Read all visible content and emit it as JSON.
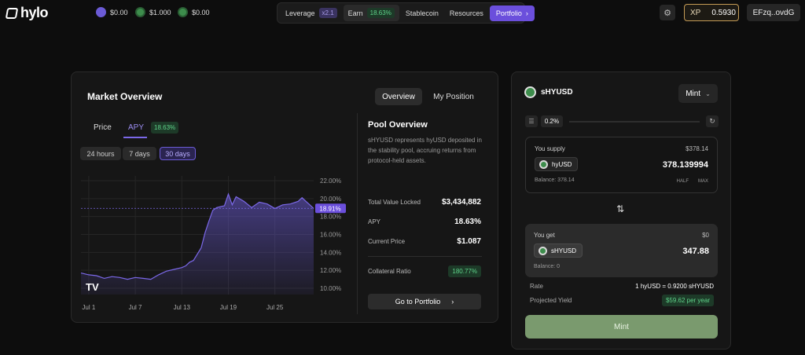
{
  "brand": {
    "logo": "hylo"
  },
  "balances": [
    {
      "icon": "hyusd-coin-icon",
      "value": "$0.00"
    },
    {
      "icon": "sol-coin-icon",
      "value": "$1.000"
    },
    {
      "icon": "shyusd-coin-icon",
      "value": "$0.00"
    }
  ],
  "nav": {
    "leverage": "Leverage",
    "leverage_badge": "x2.1",
    "earn": "Earn",
    "earn_badge": "18.63%",
    "stablecoin": "Stablecoin",
    "resources": "Resources",
    "portfolio": "Portfolio"
  },
  "header_right": {
    "xp_label": "XP",
    "xp_value": "0.5930",
    "wallet": "EFzq..ovdG"
  },
  "market": {
    "title": "Market Overview",
    "tabs": [
      "Overview",
      "My Position"
    ],
    "subtabs": {
      "price": "Price",
      "apy": "APY",
      "apy_badge": "18.63%"
    },
    "ranges": [
      "24 hours",
      "7 days",
      "30 days"
    ],
    "current_label": "18.91%"
  },
  "chart_data": {
    "type": "area",
    "y_ticks": [
      "22.00%",
      "20.00%",
      "18.00%",
      "16.00%",
      "14.00%",
      "12.00%",
      "10.00%"
    ],
    "x_ticks": [
      "Jul 1",
      "Jul 7",
      "Jul 13",
      "Jul 19",
      "Jul 25"
    ],
    "ylim": [
      10,
      22
    ],
    "xlim": [
      0,
      30
    ],
    "current": 18.91,
    "x": [
      0,
      1,
      2,
      3,
      4,
      5,
      6,
      7,
      8,
      9,
      10,
      11,
      12,
      13,
      13.5,
      14,
      14.5,
      15,
      15.5,
      16,
      16.5,
      17,
      17.5,
      18,
      18.5,
      19,
      19.5,
      20,
      21,
      22,
      23,
      24,
      25,
      26,
      27,
      28,
      28.5,
      29,
      29.5,
      30
    ],
    "values": [
      11.7,
      11.5,
      11.4,
      11.1,
      11.3,
      11.2,
      11.0,
      11.2,
      11.1,
      11.0,
      11.5,
      11.9,
      12.1,
      12.3,
      12.5,
      12.9,
      13.1,
      13.8,
      14.5,
      16.2,
      17.5,
      18.7,
      19.0,
      19.1,
      19.2,
      20.5,
      19.3,
      20.2,
      19.7,
      19.0,
      19.6,
      19.4,
      18.9,
      19.3,
      19.4,
      19.7,
      20.1,
      19.7,
      19.3,
      18.9
    ]
  },
  "pool": {
    "title": "Pool Overview",
    "description": "sHYUSD represents hyUSD deposited in the stability pool, accruing returns from protocol-held assets.",
    "stats": [
      {
        "label": "Total Value Locked",
        "value": "$3,434,882"
      },
      {
        "label": "APY",
        "value": "18.63%"
      },
      {
        "label": "Current Price",
        "value": "$1.087"
      }
    ],
    "collateral_label": "Collateral Ratio",
    "collateral_value": "180.77%",
    "cta": "Go to Portfolio"
  },
  "swap": {
    "token": "sHYUSD",
    "mode": "Mint",
    "slippage": "0.2%",
    "supply": {
      "label": "You supply",
      "usd": "$378.14",
      "token": "hyUSD",
      "amount": "378.139994",
      "balance": "Balance: 378.14",
      "half": "HALF",
      "max": "MAX"
    },
    "get": {
      "label": "You get",
      "usd": "$0",
      "token": "sHYUSD",
      "amount": "347.88",
      "balance": "Balance: 0"
    },
    "rate_label": "Rate",
    "rate_value": "1 hyUSD = 0.9200 sHYUSD",
    "yield_label": "Projected Yield",
    "yield_value": "$59.62 per year",
    "button": "Mint"
  },
  "colors": {
    "accent": "#6b4fdc",
    "green": "#5fd38a",
    "mint_button": "#7a9a6e",
    "xp_border": "#c49b55"
  }
}
